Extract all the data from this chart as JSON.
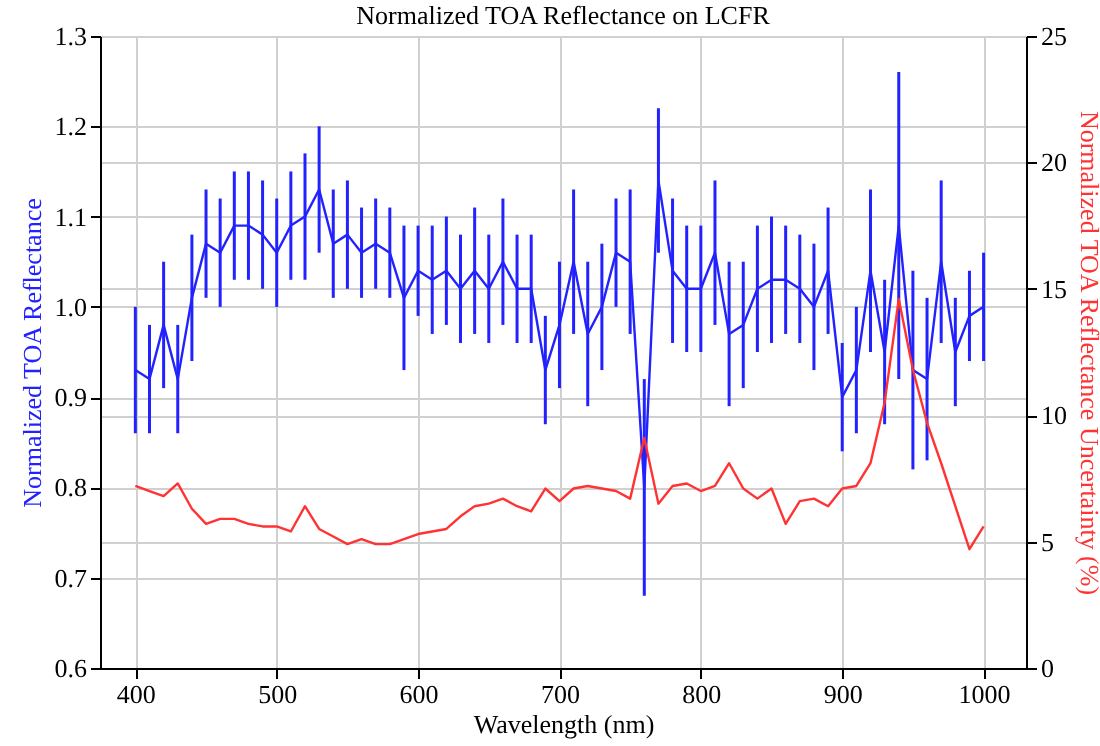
{
  "chart_data": {
    "type": "line",
    "title": "Normalized TOA Reflectance on LCFR",
    "xlabel": "Wavelength (nm)",
    "ylabel": "Normalized TOA Reflectance",
    "y2label": "Normalized TOA Reflectance Uncertainty (%)",
    "x": [
      400,
      410,
      420,
      430,
      440,
      450,
      460,
      470,
      480,
      490,
      500,
      510,
      520,
      530,
      540,
      550,
      560,
      570,
      580,
      590,
      600,
      610,
      620,
      630,
      640,
      650,
      660,
      670,
      680,
      690,
      700,
      710,
      720,
      730,
      740,
      750,
      760,
      770,
      780,
      790,
      800,
      810,
      820,
      830,
      840,
      850,
      860,
      870,
      880,
      890,
      900,
      910,
      920,
      930,
      940,
      950,
      960,
      970,
      980,
      990,
      1000
    ],
    "series": [
      {
        "color": "#2222ff",
        "values": [
          0.93,
          0.92,
          0.98,
          0.92,
          1.01,
          1.07,
          1.06,
          1.09,
          1.09,
          1.08,
          1.06,
          1.09,
          1.1,
          1.13,
          1.07,
          1.08,
          1.06,
          1.07,
          1.06,
          1.01,
          1.04,
          1.03,
          1.04,
          1.02,
          1.04,
          1.02,
          1.05,
          1.02,
          1.02,
          0.93,
          0.98,
          1.05,
          0.97,
          1.0,
          1.06,
          1.05,
          0.8,
          1.14,
          1.04,
          1.02,
          1.02,
          1.06,
          0.97,
          0.98,
          1.02,
          1.03,
          1.03,
          1.02,
          1.0,
          1.04,
          0.9,
          0.93,
          1.04,
          0.95,
          1.09,
          0.93,
          0.92,
          1.05,
          0.95,
          0.99,
          1.0
        ],
        "errors": [
          0.07,
          0.06,
          0.07,
          0.06,
          0.07,
          0.06,
          0.06,
          0.06,
          0.06,
          0.06,
          0.06,
          0.06,
          0.07,
          0.07,
          0.06,
          0.06,
          0.05,
          0.05,
          0.05,
          0.08,
          0.05,
          0.06,
          0.06,
          0.06,
          0.07,
          0.06,
          0.07,
          0.06,
          0.06,
          0.06,
          0.07,
          0.08,
          0.08,
          0.07,
          0.06,
          0.08,
          0.12,
          0.08,
          0.08,
          0.07,
          0.07,
          0.08,
          0.08,
          0.07,
          0.07,
          0.07,
          0.06,
          0.06,
          0.07,
          0.07,
          0.06,
          0.07,
          0.09,
          0.08,
          0.17,
          0.11,
          0.09,
          0.09,
          0.06,
          0.05,
          0.06
        ]
      },
      {
        "color": "#ff3333",
        "axis": "y2",
        "values": [
          7.2,
          7.0,
          6.8,
          7.3,
          6.3,
          5.7,
          5.9,
          5.9,
          5.7,
          5.6,
          5.6,
          5.4,
          6.4,
          5.5,
          5.2,
          4.9,
          5.1,
          4.9,
          4.9,
          5.1,
          5.3,
          5.4,
          5.5,
          6.0,
          6.4,
          6.5,
          6.7,
          6.4,
          6.2,
          7.1,
          6.6,
          7.1,
          7.2,
          7.1,
          7.0,
          6.7,
          9.1,
          6.5,
          7.2,
          7.3,
          7.0,
          7.2,
          8.1,
          7.1,
          6.7,
          7.1,
          5.7,
          6.6,
          6.7,
          6.4,
          7.1,
          7.2,
          8.1,
          10.5,
          14.6,
          11.8,
          9.7,
          8.1,
          6.4,
          4.7,
          5.6
        ]
      }
    ],
    "xlim": [
      375,
      1030
    ],
    "xticks": [
      400,
      500,
      600,
      700,
      800,
      900,
      1000
    ],
    "ylim": [
      0.6,
      1.3
    ],
    "yticks": [
      {
        "value": 0.6,
        "label": "0.6"
      },
      {
        "value": 0.7,
        "label": "0.7"
      },
      {
        "value": 0.8,
        "label": "0.8"
      },
      {
        "value": 0.9,
        "label": "0.9"
      },
      {
        "value": 1,
        "label": "1.0"
      },
      {
        "value": 1.1,
        "label": "1.1"
      },
      {
        "value": 1.2,
        "label": "1.2"
      },
      {
        "value": 1.3,
        "label": "1.3"
      }
    ],
    "y2lim": [
      0,
      25
    ],
    "y2ticks": [
      0,
      5,
      10,
      15,
      20,
      25
    ],
    "grid": true,
    "line_style": "solid"
  }
}
